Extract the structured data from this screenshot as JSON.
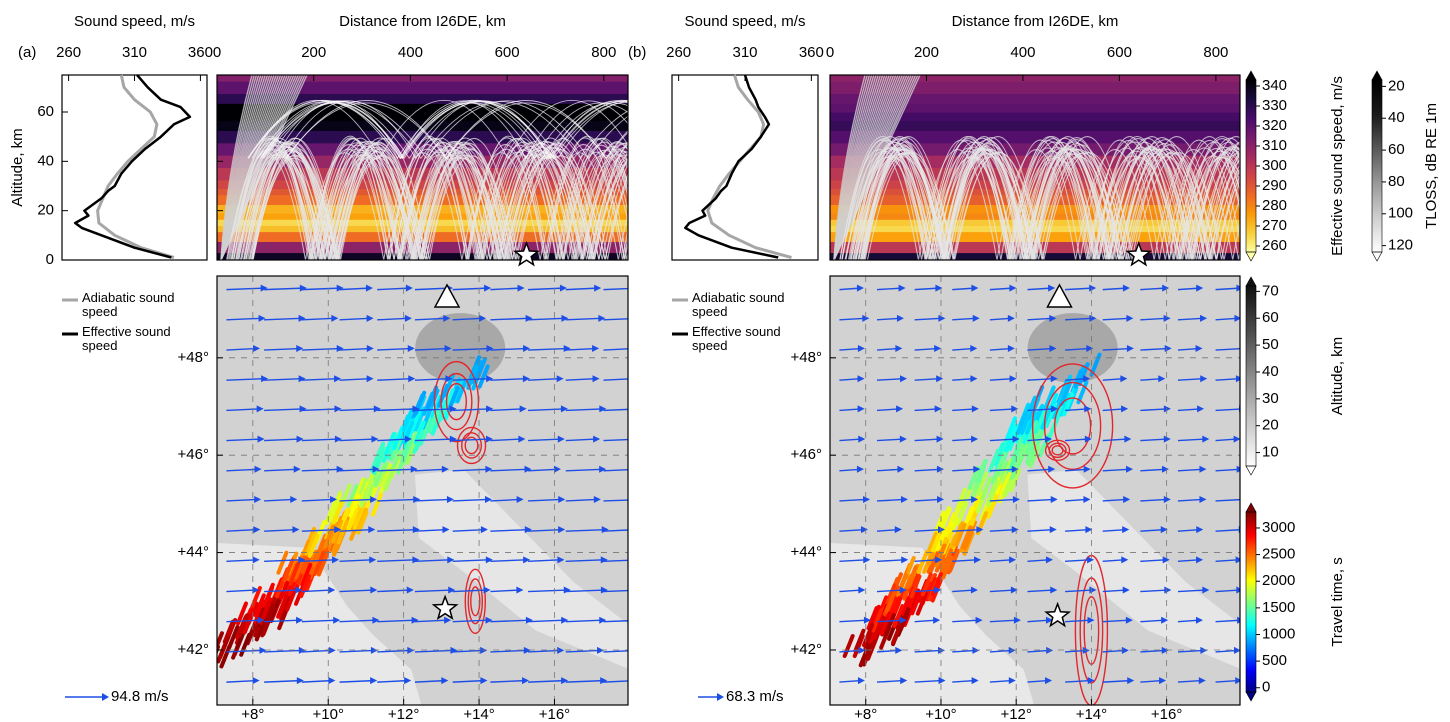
{
  "chart_data": [
    {
      "type": "line",
      "panel_label": "(a)",
      "xlabel": "Sound speed, m/s",
      "ylabel": "Altitude, km",
      "xlim": [
        255,
        365
      ],
      "xticks": [
        260,
        310,
        360
      ],
      "ylim": [
        0,
        75
      ],
      "yticks": [
        0,
        20,
        40,
        60
      ],
      "series": [
        {
          "name": "Adiabatic sound speed",
          "color": "#a6a6a6",
          "x": [
            340,
            315,
            295,
            283,
            282,
            286,
            290,
            297,
            305,
            315,
            325,
            327,
            322,
            310,
            302,
            300
          ],
          "values": [
            1,
            5,
            10,
            15,
            20,
            25,
            30,
            35,
            40,
            45,
            50,
            55,
            60,
            65,
            70,
            75
          ]
        },
        {
          "name": "Effective sound speed",
          "color": "#000000",
          "x": [
            338,
            310,
            285,
            270,
            265,
            275,
            272,
            285,
            290,
            295,
            300,
            308,
            318,
            330,
            340,
            352,
            345,
            330,
            320,
            312
          ],
          "values": [
            1,
            5,
            10,
            13,
            15,
            18,
            20,
            25,
            28,
            30,
            35,
            40,
            45,
            50,
            55,
            58,
            62,
            65,
            70,
            75
          ]
        }
      ]
    },
    {
      "type": "heatmap",
      "xlabel": "Distance from I26DE, km",
      "xlim": [
        0,
        850
      ],
      "xticks": [
        0,
        200,
        400,
        600,
        800
      ],
      "ylim": [
        0,
        75
      ],
      "yticks": [
        0,
        20,
        40,
        60
      ],
      "star": [
        640,
        2
      ]
    },
    {
      "type": "map",
      "xlim": [
        7.05,
        17.95
      ],
      "ylim": [
        40.87,
        49.68
      ],
      "xticks": [
        {
          "value": 8,
          "label": "+8°"
        },
        {
          "value": 10,
          "label": "+10°"
        },
        {
          "value": 12,
          "label": "+12°"
        },
        {
          "value": 14,
          "label": "+14°"
        },
        {
          "value": 16,
          "label": "+16°"
        }
      ],
      "yticks": [
        {
          "value": 42,
          "label": "+42°"
        },
        {
          "value": 44,
          "label": "+44°"
        },
        {
          "value": 46,
          "label": "+46°"
        },
        {
          "value": 48,
          "label": "+48°"
        }
      ],
      "station": [
        13.15,
        49.25
      ],
      "event": [
        13.1,
        42.85
      ],
      "wind_label": "94.8 m/s"
    },
    {
      "type": "line",
      "panel_label": "(b)",
      "xlabel": "Sound speed, m/s",
      "xlim": [
        255,
        365
      ],
      "xticks": [
        260,
        310,
        360
      ],
      "ylim": [
        0,
        75
      ],
      "series": [
        {
          "name": "Adiabatic sound speed",
          "color": "#a6a6a6",
          "x": [
            345,
            318,
            298,
            285,
            282,
            286,
            291,
            298,
            306,
            314,
            322,
            324,
            320,
            312,
            305,
            302
          ],
          "values": [
            1,
            5,
            10,
            15,
            20,
            25,
            30,
            35,
            40,
            45,
            50,
            55,
            60,
            65,
            70,
            75
          ]
        },
        {
          "name": "Effective sound speed",
          "color": "#000000",
          "x": [
            335,
            300,
            275,
            265,
            268,
            280,
            278,
            288,
            292,
            296,
            300,
            305,
            315,
            322,
            328,
            325,
            320,
            318,
            313,
            310
          ],
          "values": [
            1,
            5,
            10,
            13,
            15,
            18,
            20,
            25,
            28,
            30,
            35,
            40,
            45,
            50,
            55,
            58,
            62,
            65,
            70,
            75
          ]
        }
      ]
    },
    {
      "type": "heatmap",
      "xlabel": "Distance from I26DE, km",
      "xlim": [
        0,
        850
      ],
      "xticks": [
        0,
        200,
        400,
        600,
        800
      ],
      "ylim": [
        0,
        75
      ],
      "star": [
        640,
        2
      ]
    },
    {
      "type": "map",
      "xlim": [
        7.05,
        17.95
      ],
      "ylim": [
        40.87,
        49.68
      ],
      "xticks": [
        {
          "value": 8,
          "label": "+8°"
        },
        {
          "value": 10,
          "label": "+10°"
        },
        {
          "value": 12,
          "label": "+12°"
        },
        {
          "value": 14,
          "label": "+14°"
        },
        {
          "value": 16,
          "label": "+16°"
        }
      ],
      "yticks": [
        {
          "value": 42,
          "label": "+42°"
        },
        {
          "value": 44,
          "label": "+44°"
        },
        {
          "value": 46,
          "label": "+46°"
        },
        {
          "value": 48,
          "label": "+48°"
        }
      ],
      "station": [
        13.15,
        49.25
      ],
      "event": [
        13.1,
        42.7
      ],
      "wind_label": "68.3 m/s"
    },
    {
      "type": "colorbar",
      "label": "Effective sound speed, m/s",
      "ylim": [
        257,
        343
      ],
      "yticks": [
        260,
        270,
        280,
        290,
        300,
        310,
        320,
        330,
        340
      ],
      "colors": [
        "#fcffa4",
        "#f7d13d",
        "#fb9b06",
        "#ed6925",
        "#cf4446",
        "#a52c60",
        "#781c6d",
        "#4a0c6b",
        "#1b0c41",
        "#000004"
      ]
    },
    {
      "type": "colorbar",
      "label": "TLOSS, dB RE 1m",
      "ylim": [
        124,
        16
      ],
      "yticks": [
        20,
        40,
        60,
        80,
        100,
        120
      ],
      "colors": [
        "#ffffff",
        "#d0d0d0",
        "#9a9a9a",
        "#5a5a5a",
        "#1a1a1a",
        "#000000"
      ]
    },
    {
      "type": "colorbar",
      "label": "Altitude, km",
      "ylim": [
        5,
        72
      ],
      "yticks": [
        10,
        20,
        30,
        40,
        50,
        60,
        70
      ],
      "colors": [
        "#ffffff",
        "#c8c8c8",
        "#8c8c8c",
        "#4c4c4c",
        "#111111"
      ]
    },
    {
      "type": "colorbar",
      "label": "Travel time, s",
      "ylim": [
        -80,
        3300
      ],
      "yticks": [
        0,
        500,
        1000,
        1500,
        2000,
        2500,
        3000
      ],
      "colors": [
        "#00007f",
        "#0000ff",
        "#007fff",
        "#00ffff",
        "#7fff7f",
        "#ffff00",
        "#ff7f00",
        "#ff0000",
        "#7f0000"
      ]
    }
  ]
}
